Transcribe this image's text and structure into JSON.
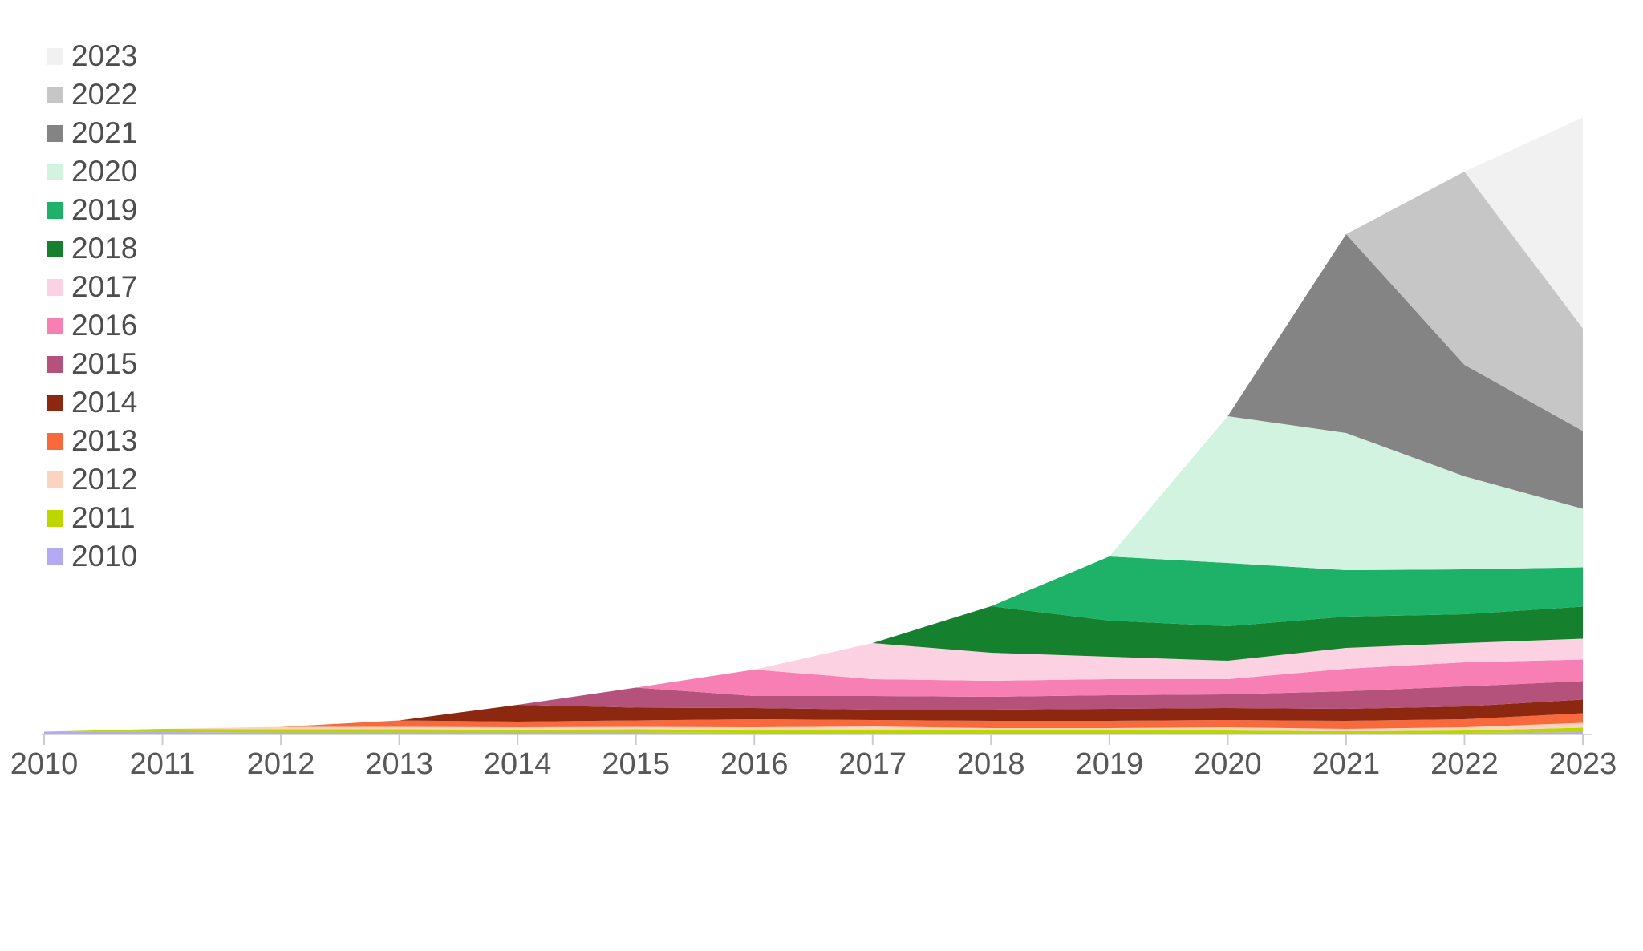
{
  "chart_data": {
    "type": "area",
    "stacked": true,
    "title": "",
    "xlabel": "",
    "ylabel": "",
    "grid": false,
    "background": "#ffffff",
    "x": [
      2010,
      2011,
      2012,
      2013,
      2014,
      2015,
      2016,
      2017,
      2018,
      2019,
      2020,
      2021,
      2022,
      2023
    ],
    "x_tick_labels": [
      "2010",
      "2011",
      "2012",
      "2013",
      "2014",
      "2015",
      "2016",
      "2017",
      "2018",
      "2019",
      "2020",
      "2021",
      "2022",
      "2023"
    ],
    "ylim": [
      0,
      780
    ],
    "series": [
      {
        "name": "2010",
        "color": "#b3aaf3",
        "values": [
          2.5,
          2,
          1.5,
          1.5,
          1.5,
          1.5,
          1,
          1,
          1,
          1,
          1,
          1,
          1,
          2
        ]
      },
      {
        "name": "2011",
        "color": "#bcd600",
        "values": [
          0,
          4,
          4,
          4,
          3.5,
          4,
          4,
          4,
          3,
          3,
          3,
          2,
          3,
          5.5
        ]
      },
      {
        "name": "2012",
        "color": "#fbd4c0",
        "values": [
          0,
          0,
          3,
          3,
          3,
          3,
          3,
          4,
          3,
          3,
          4,
          3,
          4,
          6
        ]
      },
      {
        "name": "2013",
        "color": "#f8693c",
        "values": [
          0,
          0,
          0,
          8,
          7,
          8,
          10,
          8,
          9,
          9,
          9,
          10,
          10,
          12
        ]
      },
      {
        "name": "2014",
        "color": "#8c2710",
        "values": [
          0,
          0,
          0,
          0,
          21,
          16,
          14,
          13,
          14,
          15,
          15,
          15,
          16,
          17
        ]
      },
      {
        "name": "2015",
        "color": "#b4527c",
        "values": [
          0,
          0,
          0,
          0,
          0,
          25,
          15,
          17,
          16,
          17,
          17,
          22,
          25,
          23
        ]
      },
      {
        "name": "2016",
        "color": "#f87fb4",
        "values": [
          0,
          0,
          0,
          0,
          0,
          0,
          33,
          21,
          20,
          20,
          19,
          28,
          30,
          27
        ]
      },
      {
        "name": "2017",
        "color": "#fcd2e3",
        "values": [
          0,
          0,
          0,
          0,
          0,
          0,
          0,
          45,
          35,
          28,
          23,
          26,
          24,
          26
        ]
      },
      {
        "name": "2018",
        "color": "#15802e",
        "values": [
          0,
          0,
          0,
          0,
          0,
          0,
          0,
          0,
          58,
          45,
          43,
          39,
          36,
          40
        ]
      },
      {
        "name": "2019",
        "color": "#1eb269",
        "values": [
          0,
          0,
          0,
          0,
          0,
          0,
          0,
          0,
          0,
          80,
          79,
          58,
          56,
          49
        ]
      },
      {
        "name": "2020",
        "color": "#d2f3e0",
        "values": [
          0,
          0,
          0,
          0,
          0,
          0,
          0,
          0,
          0,
          0,
          183,
          171,
          116,
          73
        ]
      },
      {
        "name": "2021",
        "color": "#848484",
        "values": [
          0,
          0,
          0,
          0,
          0,
          0,
          0,
          0,
          0,
          0,
          0,
          248,
          139,
          97
        ]
      },
      {
        "name": "2022",
        "color": "#c6c6c6",
        "values": [
          0,
          0,
          0,
          0,
          0,
          0,
          0,
          0,
          0,
          0,
          0,
          0,
          241,
          128
        ]
      },
      {
        "name": "2023",
        "color": "#f1f1f1",
        "values": [
          0,
          0,
          0,
          0,
          0,
          0,
          0,
          0,
          0,
          0,
          0,
          0,
          0,
          263
        ]
      }
    ],
    "legend": {
      "position": "top-left",
      "entries": [
        {
          "label": "2023",
          "color": "#f1f1f1"
        },
        {
          "label": "2022",
          "color": "#c6c6c6"
        },
        {
          "label": "2021",
          "color": "#848484"
        },
        {
          "label": "2020",
          "color": "#d2f3e0"
        },
        {
          "label": "2019",
          "color": "#1eb269"
        },
        {
          "label": "2018",
          "color": "#15802e"
        },
        {
          "label": "2017",
          "color": "#fcd2e3"
        },
        {
          "label": "2016",
          "color": "#f87fb4"
        },
        {
          "label": "2015",
          "color": "#b4527c"
        },
        {
          "label": "2014",
          "color": "#8c2710"
        },
        {
          "label": "2013",
          "color": "#f8693c"
        },
        {
          "label": "2012",
          "color": "#fbd4c0"
        },
        {
          "label": "2011",
          "color": "#bcd600"
        },
        {
          "label": "2010",
          "color": "#b3aaf3"
        }
      ]
    },
    "axis_colors": {
      "baseline": "#d9d9d9",
      "tick": "#cccccc",
      "label": "#575757"
    }
  }
}
